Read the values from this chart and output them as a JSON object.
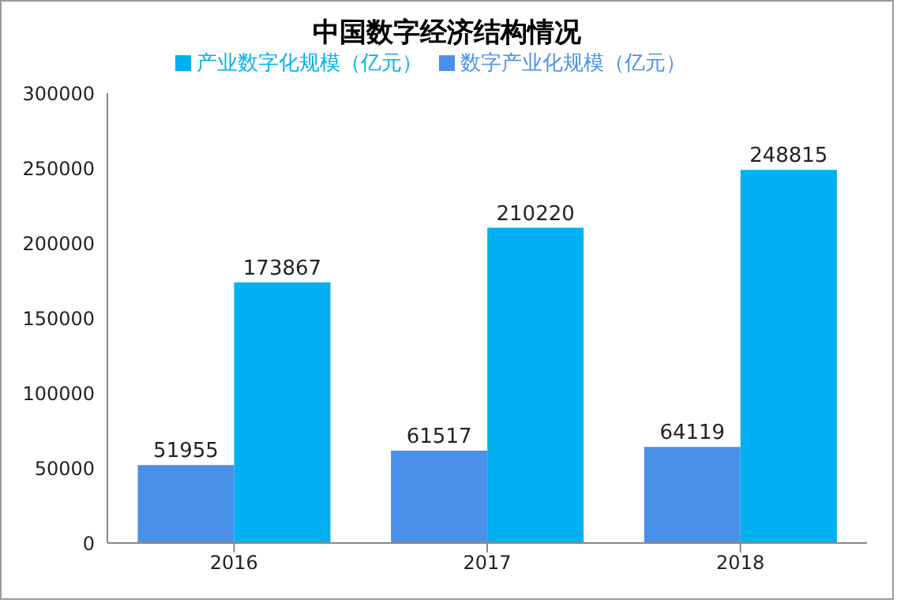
{
  "chart_data": {
    "type": "bar",
    "title": "中国数字经济结构情况",
    "categories": [
      "2016",
      "2017",
      "2018"
    ],
    "series": [
      {
        "name": "数字产业化规模（亿元）",
        "color": "#4a90e8",
        "values": [
          51955,
          61517,
          64119
        ]
      },
      {
        "name": "产业数字化规模（亿元）",
        "color": "#00b0f0",
        "values": [
          173867,
          210220,
          248815
        ]
      }
    ],
    "ylim": [
      0,
      300000
    ],
    "yticks": [
      0,
      50000,
      100000,
      150000,
      200000,
      250000,
      300000
    ],
    "grid": false,
    "legend": "top",
    "data_labels": true
  }
}
